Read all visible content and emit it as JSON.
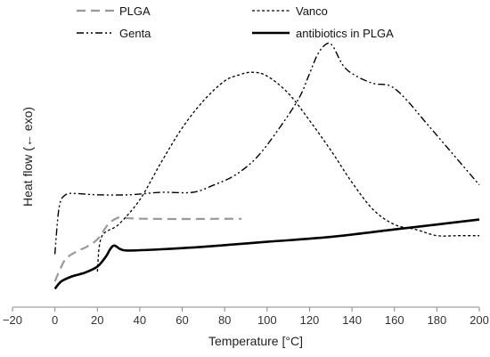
{
  "chart_data": {
    "type": "line",
    "title": "",
    "xlabel": "Temperature [°C]",
    "ylabel": "Heat flow (← exo)",
    "xlim": [
      -20,
      200
    ],
    "ylim": [
      0,
      100
    ],
    "x_ticks": [
      "−20",
      "0",
      "20",
      "40",
      "60",
      "80",
      "100",
      "120",
      "140",
      "160",
      "180",
      "200"
    ],
    "y_ticks_shown": false,
    "grid": false,
    "legend_position": "top",
    "series": [
      {
        "name": "PLGA",
        "color": "#999999",
        "style": "dashed",
        "points": [
          [
            0,
            5
          ],
          [
            2,
            9
          ],
          [
            5,
            14
          ],
          [
            10,
            17
          ],
          [
            15,
            19
          ],
          [
            20,
            22
          ],
          [
            25,
            28
          ],
          [
            28,
            30
          ],
          [
            31,
            31
          ],
          [
            35,
            30.5
          ],
          [
            45,
            30.3
          ],
          [
            60,
            30.2
          ],
          [
            75,
            30.3
          ],
          [
            88,
            30.3
          ]
        ]
      },
      {
        "name": "Vanco",
        "color": "#000000",
        "style": "dotted",
        "points": [
          [
            20,
            9
          ],
          [
            22,
            23
          ],
          [
            30,
            28
          ],
          [
            40,
            38
          ],
          [
            50,
            53
          ],
          [
            60,
            67
          ],
          [
            70,
            78
          ],
          [
            80,
            86
          ],
          [
            87,
            88.5
          ],
          [
            93,
            89.5
          ],
          [
            100,
            88
          ],
          [
            110,
            81
          ],
          [
            120,
            70
          ],
          [
            130,
            58
          ],
          [
            140,
            45
          ],
          [
            150,
            34
          ],
          [
            160,
            28
          ],
          [
            170,
            26
          ],
          [
            180,
            23.5
          ],
          [
            190,
            23.5
          ],
          [
            200,
            23.5
          ]
        ]
      },
      {
        "name": "Genta",
        "color": "#000000",
        "style": "dash-dot-dot",
        "points": [
          [
            0,
            16
          ],
          [
            2,
            35
          ],
          [
            5,
            40
          ],
          [
            10,
            40.5
          ],
          [
            20,
            40
          ],
          [
            35,
            40
          ],
          [
            50,
            41
          ],
          [
            65,
            41
          ],
          [
            75,
            44
          ],
          [
            85,
            48
          ],
          [
            95,
            55
          ],
          [
            105,
            66
          ],
          [
            115,
            79
          ],
          [
            120,
            89
          ],
          [
            124,
            97
          ],
          [
            128,
            101
          ],
          [
            131,
            100
          ],
          [
            136,
            92
          ],
          [
            142,
            88
          ],
          [
            150,
            85
          ],
          [
            158,
            84
          ],
          [
            165,
            79
          ],
          [
            175,
            69
          ],
          [
            185,
            59
          ],
          [
            195,
            49
          ],
          [
            200,
            44
          ]
        ]
      },
      {
        "name": "antibiotics in PLGA",
        "color": "#000000",
        "style": "solid",
        "points": [
          [
            0,
            2
          ],
          [
            3,
            5
          ],
          [
            8,
            7
          ],
          [
            14,
            8.5
          ],
          [
            20,
            11
          ],
          [
            24,
            15
          ],
          [
            26,
            18
          ],
          [
            28,
            19.5
          ],
          [
            31,
            18
          ],
          [
            35,
            17.5
          ],
          [
            50,
            18
          ],
          [
            70,
            19
          ],
          [
            100,
            21
          ],
          [
            130,
            23
          ],
          [
            160,
            26
          ],
          [
            180,
            28
          ],
          [
            200,
            30
          ]
        ]
      }
    ]
  }
}
